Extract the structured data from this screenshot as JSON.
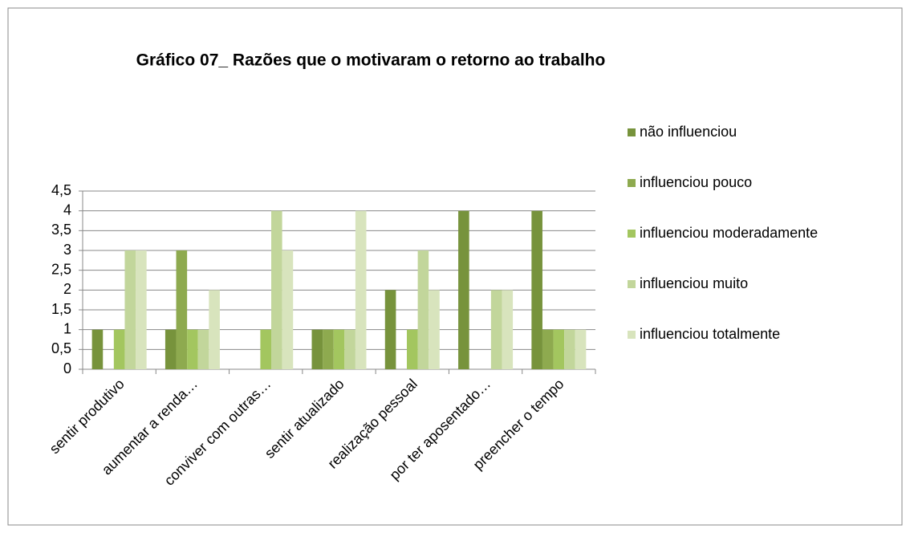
{
  "chart_data": {
    "type": "bar",
    "title": "Gráfico 07_ Razões que o motivaram o retorno ao trabalho",
    "categories": [
      "sentir produtivo",
      "aumentar a renda…",
      "conviver com outras…",
      "sentir atualizado",
      "realização pessoal",
      "por ter aposentado…",
      "preencher o tempo"
    ],
    "series": [
      {
        "name": "não influenciou",
        "color": "#77933c",
        "values": [
          1,
          1,
          0,
          1,
          2,
          4,
          4
        ]
      },
      {
        "name": "influenciou pouco",
        "color": "#8eaa4f",
        "values": [
          0,
          3,
          0,
          1,
          0,
          0,
          1
        ]
      },
      {
        "name": "influenciou moderadamente",
        "color": "#a3c65f",
        "values": [
          1,
          1,
          1,
          1,
          1,
          0,
          1
        ]
      },
      {
        "name": "influenciou muito",
        "color": "#c2d69b",
        "values": [
          3,
          1,
          4,
          1,
          3,
          2,
          1
        ]
      },
      {
        "name": "influenciou totalmente",
        "color": "#d8e4bd",
        "values": [
          3,
          2,
          3,
          4,
          2,
          2,
          1
        ]
      }
    ],
    "ylim": [
      0,
      4.5
    ],
    "yticks": [
      0,
      {
        "value": 0.5,
        "label": "0,5"
      },
      1,
      {
        "value": 1.5,
        "label": "1,5"
      },
      2,
      {
        "value": 2.5,
        "label": "2,5"
      },
      3,
      {
        "value": 3.5,
        "label": "3,5"
      },
      4,
      {
        "value": 4.5,
        "label": "4,5"
      }
    ],
    "grid": true,
    "legend": "right"
  }
}
